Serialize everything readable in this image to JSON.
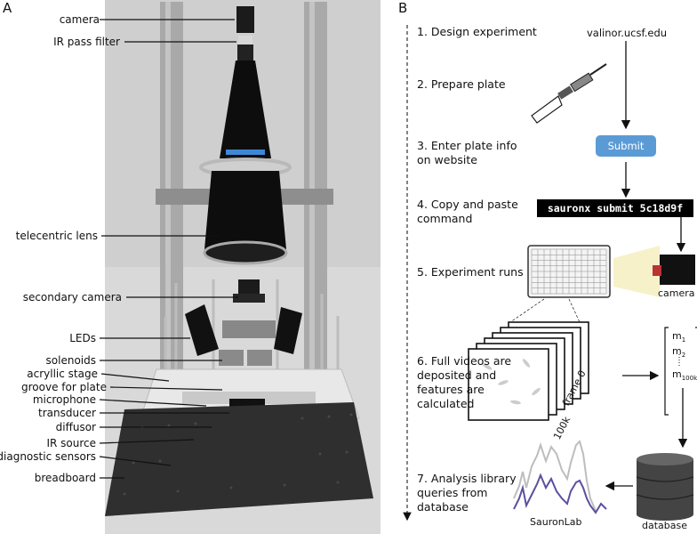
{
  "panel_a": {
    "letter": "A",
    "labels": [
      "camera",
      "IR pass filter",
      "telecentric lens",
      "secondary camera",
      "LEDs",
      "solenoids",
      "acryllic stage",
      "groove for plate",
      "microphone",
      "transducer",
      "diffusor",
      "IR source",
      "diagnostic sensors",
      "breadboard"
    ]
  },
  "panel_b": {
    "letter": "B",
    "steps": [
      "1. Design experiment",
      "2. Prepare plate",
      "3. Enter plate info\non website",
      "4. Copy and paste\ncommand",
      "5. Experiment runs",
      "6. Full videos are\ndeposited and\nfeatures are\ncalculated",
      "7. Analysis library\nqueries from\ndatabase"
    ],
    "server": "valinor.ucsf.edu",
    "submit_label": "Submit",
    "command": "sauronx submit 5c18d9f",
    "camera_label": "camera",
    "frame_start": "frame 0",
    "frame_end": "100k",
    "vector": {
      "m": "m",
      "sub1": "1",
      "sub2": "2",
      "subn": "100k"
    },
    "database_label": "database",
    "library_label": "SauronLab",
    "colors": {
      "submit": "#5b9bd5",
      "trace_light": "#bdbdbd",
      "trace_dark": "#5a50a0"
    }
  }
}
